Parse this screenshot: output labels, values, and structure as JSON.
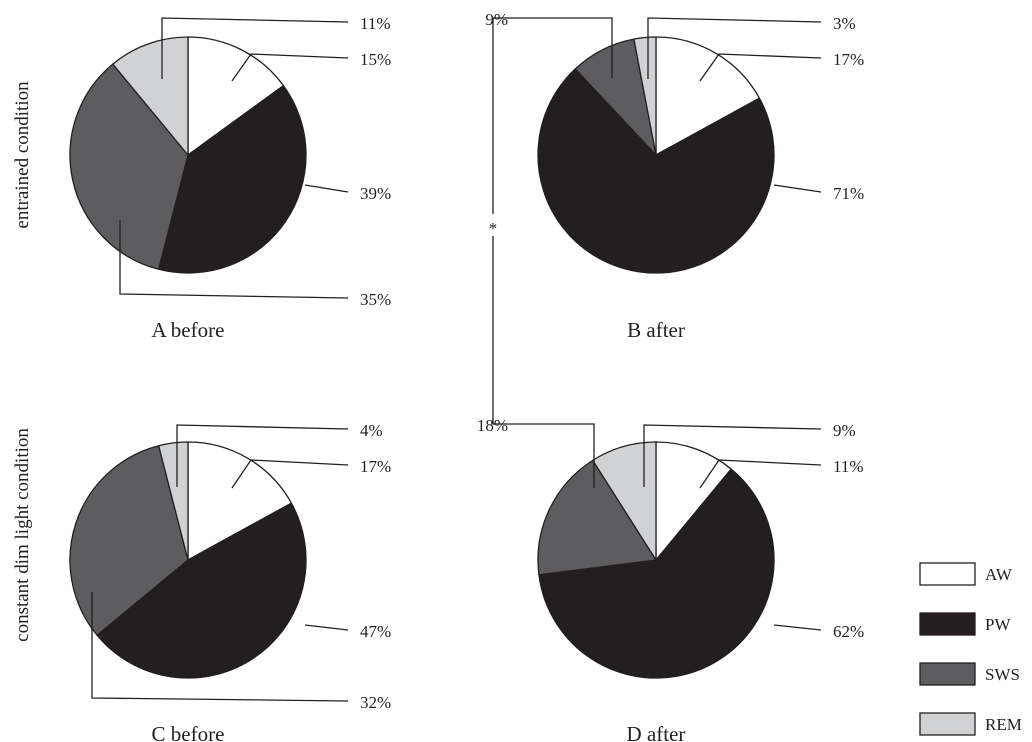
{
  "row_labels": [
    "entrained condition",
    "constant dim light condition"
  ],
  "significance_mark": "*",
  "significance_labels": [
    "9%",
    "18%"
  ],
  "legend": [
    {
      "label": "AW",
      "color": "#ffffff"
    },
    {
      "label": "PW",
      "color": "#231f20"
    },
    {
      "label": "SWS",
      "color": "#5d5d5f"
    },
    {
      "label": "REM",
      "color": "#d1d2d4"
    }
  ],
  "chart_data": [
    {
      "type": "pie",
      "title": "A before",
      "categories": [
        "AW",
        "PW",
        "SWS",
        "REM"
      ],
      "values": [
        15,
        39,
        35,
        11
      ],
      "labels": [
        "15%",
        "39%",
        "35%",
        "11%"
      ]
    },
    {
      "type": "pie",
      "title": "B after",
      "categories": [
        "AW",
        "PW",
        "SWS",
        "REM"
      ],
      "values": [
        17,
        71,
        9,
        3
      ],
      "labels": [
        "17%",
        "71%",
        "",
        "3%"
      ]
    },
    {
      "type": "pie",
      "title": "C before",
      "categories": [
        "AW",
        "PW",
        "SWS",
        "REM"
      ],
      "values": [
        17,
        47,
        32,
        4
      ],
      "labels": [
        "17%",
        "47%",
        "32%",
        "4%"
      ]
    },
    {
      "type": "pie",
      "title": "D after",
      "categories": [
        "AW",
        "PW",
        "SWS",
        "REM"
      ],
      "values": [
        11,
        62,
        18,
        9
      ],
      "labels": [
        "11%",
        "62%",
        "",
        "9%"
      ]
    }
  ]
}
